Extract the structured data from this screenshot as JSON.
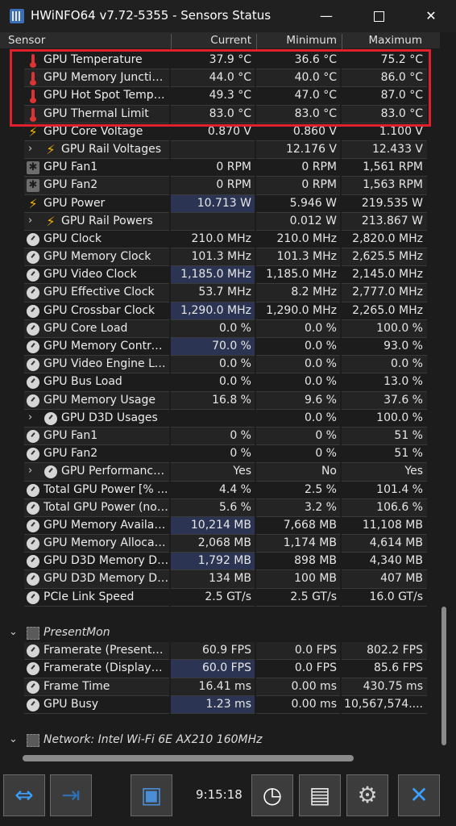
{
  "window": {
    "title": "HWiNFO64 v7.72-5355 - Sensors Status",
    "minimize": "—",
    "close": "✕"
  },
  "columns": {
    "sensor": "Sensor",
    "current": "Current",
    "minimum": "Minimum",
    "maximum": "Maximum"
  },
  "rows": [
    {
      "icon": "thermometer-icon",
      "name": "GPU Temperature",
      "cur": "37.9 °C",
      "min": "36.6 °C",
      "max": "75.2 °C"
    },
    {
      "icon": "thermometer-icon",
      "name": "GPU Memory Junction...",
      "cur": "44.0 °C",
      "min": "40.0 °C",
      "max": "86.0 °C",
      "hl": true
    },
    {
      "icon": "thermometer-icon",
      "name": "GPU Hot Spot Temper...",
      "cur": "49.3 °C",
      "min": "47.0 °C",
      "max": "87.0 °C"
    },
    {
      "icon": "thermometer-icon",
      "name": "GPU Thermal Limit",
      "cur": "83.0 °C",
      "min": "83.0 °C",
      "max": "83.0 °C"
    },
    {
      "icon": "lightning-icon",
      "name": "GPU Core Voltage",
      "cur": "0.870 V",
      "min": "0.860 V",
      "max": "1.100 V"
    },
    {
      "icon": "lightning-icon",
      "name": "GPU Rail Voltages",
      "cur": "",
      "min": "12.176 V",
      "max": "12.433 V",
      "sub": true,
      "expand": "›"
    },
    {
      "icon": "fan-icon",
      "name": "GPU Fan1",
      "cur": "0 RPM",
      "min": "0 RPM",
      "max": "1,561 RPM"
    },
    {
      "icon": "fan-icon",
      "name": "GPU Fan2",
      "cur": "0 RPM",
      "min": "0 RPM",
      "max": "1,563 RPM"
    },
    {
      "icon": "lightning-icon",
      "name": "GPU Power",
      "cur": "10.713 W",
      "min": "5.946 W",
      "max": "219.535 W",
      "hl": true
    },
    {
      "icon": "lightning-icon",
      "name": "GPU Rail Powers",
      "cur": "",
      "min": "0.012 W",
      "max": "213.867 W",
      "sub": true,
      "expand": "›"
    },
    {
      "icon": "gauge-icon",
      "name": "GPU Clock",
      "cur": "210.0 MHz",
      "min": "210.0 MHz",
      "max": "2,820.0 MHz"
    },
    {
      "icon": "gauge-icon",
      "name": "GPU Memory Clock",
      "cur": "101.3 MHz",
      "min": "101.3 MHz",
      "max": "2,625.5 MHz"
    },
    {
      "icon": "gauge-icon",
      "name": "GPU Video Clock",
      "cur": "1,185.0 MHz",
      "min": "1,185.0 MHz",
      "max": "2,145.0 MHz",
      "hl": true
    },
    {
      "icon": "gauge-icon",
      "name": "GPU Effective Clock",
      "cur": "53.7 MHz",
      "min": "8.2 MHz",
      "max": "2,777.0 MHz",
      "hl": true
    },
    {
      "icon": "gauge-icon",
      "name": "GPU Crossbar Clock",
      "cur": "1,290.0 MHz",
      "min": "1,290.0 MHz",
      "max": "2,265.0 MHz",
      "hl": true
    },
    {
      "icon": "gauge-icon",
      "name": "GPU Core Load",
      "cur": "0.0 %",
      "min": "0.0 %",
      "max": "100.0 %"
    },
    {
      "icon": "gauge-icon",
      "name": "GPU Memory Controll...",
      "cur": "70.0 %",
      "min": "0.0 %",
      "max": "93.0 %",
      "hl": true
    },
    {
      "icon": "gauge-icon",
      "name": "GPU Video Engine Load",
      "cur": "0.0 %",
      "min": "0.0 %",
      "max": "0.0 %"
    },
    {
      "icon": "gauge-icon",
      "name": "GPU Bus Load",
      "cur": "0.0 %",
      "min": "0.0 %",
      "max": "13.0 %"
    },
    {
      "icon": "gauge-icon",
      "name": "GPU Memory Usage",
      "cur": "16.8 %",
      "min": "9.6 %",
      "max": "37.6 %"
    },
    {
      "icon": "gauge-icon",
      "name": "GPU D3D Usages",
      "cur": "",
      "min": "0.0 %",
      "max": "100.0 %",
      "sub": true,
      "expand": "›"
    },
    {
      "icon": "gauge-icon",
      "name": "GPU Fan1",
      "cur": "0 %",
      "min": "0 %",
      "max": "51 %"
    },
    {
      "icon": "gauge-icon",
      "name": "GPU Fan2",
      "cur": "0 %",
      "min": "0 %",
      "max": "51 %"
    },
    {
      "icon": "gauge-icon",
      "name": "GPU Performance ...",
      "cur": "Yes",
      "min": "No",
      "max": "Yes",
      "sub": true,
      "expand": "›"
    },
    {
      "icon": "gauge-icon",
      "name": "Total GPU Power [% ...",
      "cur": "4.4 %",
      "min": "2.5 %",
      "max": "101.4 %"
    },
    {
      "icon": "gauge-icon",
      "name": "Total GPU Power (nor...",
      "cur": "5.6 %",
      "min": "3.2 %",
      "max": "106.6 %"
    },
    {
      "icon": "gauge-icon",
      "name": "GPU Memory Available",
      "cur": "10,214 MB",
      "min": "7,668 MB",
      "max": "11,108 MB",
      "hl": true
    },
    {
      "icon": "gauge-icon",
      "name": "GPU Memory Allocated",
      "cur": "2,068 MB",
      "min": "1,174 MB",
      "max": "4,614 MB",
      "hl": true
    },
    {
      "icon": "gauge-icon",
      "name": "GPU D3D Memory De...",
      "cur": "1,792 MB",
      "min": "898 MB",
      "max": "4,340 MB",
      "hl": true
    },
    {
      "icon": "gauge-icon",
      "name": "GPU D3D Memory Dy...",
      "cur": "134 MB",
      "min": "100 MB",
      "max": "407 MB",
      "hl": true
    },
    {
      "icon": "gauge-icon",
      "name": "PCIe Link Speed",
      "cur": "2.5 GT/s",
      "min": "2.5 GT/s",
      "max": "16.0 GT/s"
    },
    {
      "blank": true
    },
    {
      "group": true,
      "icon": "chip-icon",
      "name": "PresentMon",
      "expand": "⌄"
    },
    {
      "icon": "gauge-icon",
      "name": "Framerate (Presented)",
      "cur": "60.9 FPS",
      "min": "0.0 FPS",
      "max": "802.2 FPS",
      "hl": true
    },
    {
      "icon": "gauge-icon",
      "name": "Framerate (Displayed)",
      "cur": "60.0 FPS",
      "min": "0.0 FPS",
      "max": "85.6 FPS",
      "hl": true
    },
    {
      "icon": "gauge-icon",
      "name": "Frame Time",
      "cur": "16.41 ms",
      "min": "0.00 ms",
      "max": "430.75 ms",
      "hl": true
    },
    {
      "icon": "gauge-icon",
      "name": "GPU Busy",
      "cur": "1.23 ms",
      "min": "0.00 ms",
      "max": "10,567,574....",
      "hl": true
    },
    {
      "blank": true
    },
    {
      "group": true,
      "icon": "chip-icon",
      "name": "Network: Intel Wi-Fi 6E AX210 160MHz",
      "expand": "⌄"
    }
  ],
  "toolbar": {
    "clock": "9:15:18"
  }
}
